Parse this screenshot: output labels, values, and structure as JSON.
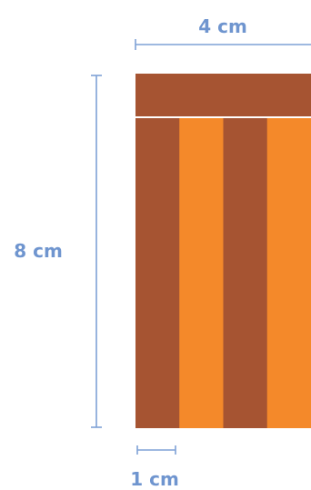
{
  "labels": {
    "width": "4 cm",
    "height": "8 cm",
    "strip_width": "1 cm"
  },
  "colors": {
    "dimension": "#7fa2d6",
    "label": "#6f95cf",
    "dark_strip": "#a65432",
    "light_strip": "#f4892a",
    "separator": "#ffffff"
  },
  "strips": [
    {
      "shade": "dark"
    },
    {
      "shade": "light"
    },
    {
      "shade": "dark"
    },
    {
      "shade": "light"
    }
  ]
}
